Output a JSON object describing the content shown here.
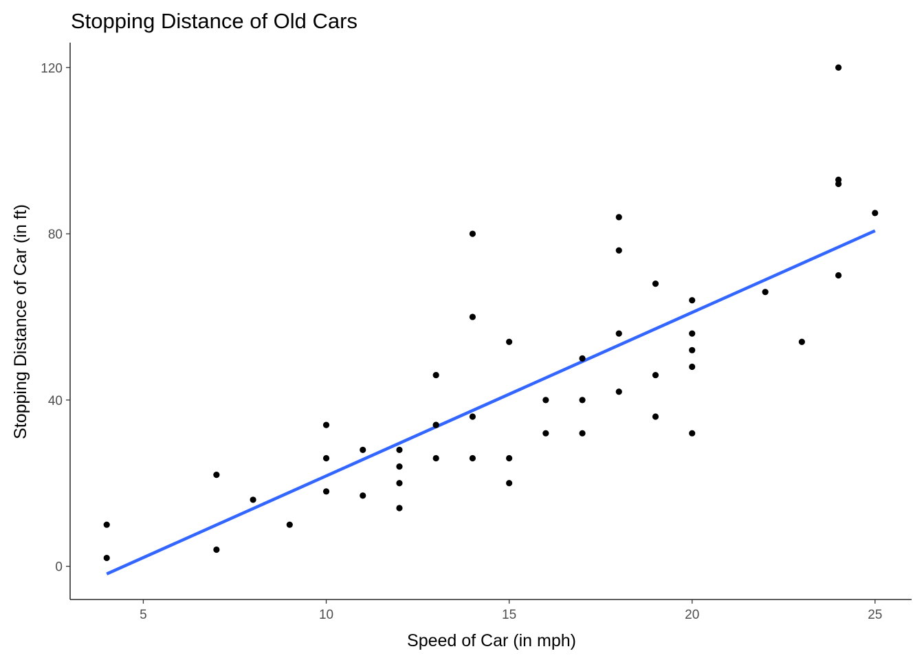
{
  "chart_data": {
    "type": "scatter",
    "title": "Stopping Distance of Old Cars",
    "xlabel": "Speed of Car (in mph)",
    "ylabel": "Stopping Distance of Car (in ft)",
    "xlim": [
      3,
      26
    ],
    "ylim": [
      -8,
      126
    ],
    "x_ticks": [
      5,
      10,
      15,
      20,
      25
    ],
    "y_ticks": [
      0,
      40,
      80,
      120
    ],
    "grid": false,
    "series": [
      {
        "type": "scatter",
        "color": "#000000",
        "points": [
          [
            4,
            2
          ],
          [
            4,
            10
          ],
          [
            7,
            4
          ],
          [
            7,
            22
          ],
          [
            8,
            16
          ],
          [
            9,
            10
          ],
          [
            10,
            18
          ],
          [
            10,
            26
          ],
          [
            10,
            34
          ],
          [
            11,
            17
          ],
          [
            11,
            28
          ],
          [
            12,
            14
          ],
          [
            12,
            20
          ],
          [
            12,
            24
          ],
          [
            12,
            28
          ],
          [
            13,
            26
          ],
          [
            13,
            34
          ],
          [
            13,
            34
          ],
          [
            13,
            46
          ],
          [
            14,
            26
          ],
          [
            14,
            36
          ],
          [
            14,
            60
          ],
          [
            14,
            80
          ],
          [
            15,
            20
          ],
          [
            15,
            26
          ],
          [
            15,
            54
          ],
          [
            16,
            32
          ],
          [
            16,
            40
          ],
          [
            17,
            32
          ],
          [
            17,
            40
          ],
          [
            17,
            50
          ],
          [
            18,
            42
          ],
          [
            18,
            56
          ],
          [
            18,
            76
          ],
          [
            18,
            84
          ],
          [
            19,
            36
          ],
          [
            19,
            46
          ],
          [
            19,
            68
          ],
          [
            20,
            32
          ],
          [
            20,
            48
          ],
          [
            20,
            52
          ],
          [
            20,
            56
          ],
          [
            20,
            64
          ],
          [
            22,
            66
          ],
          [
            23,
            54
          ],
          [
            24,
            70
          ],
          [
            24,
            92
          ],
          [
            24,
            93
          ],
          [
            24,
            120
          ],
          [
            25,
            85
          ]
        ]
      },
      {
        "type": "line",
        "color": "#3366ff",
        "x": [
          4,
          25
        ],
        "y": [
          -1.85,
          80.73
        ]
      }
    ]
  }
}
